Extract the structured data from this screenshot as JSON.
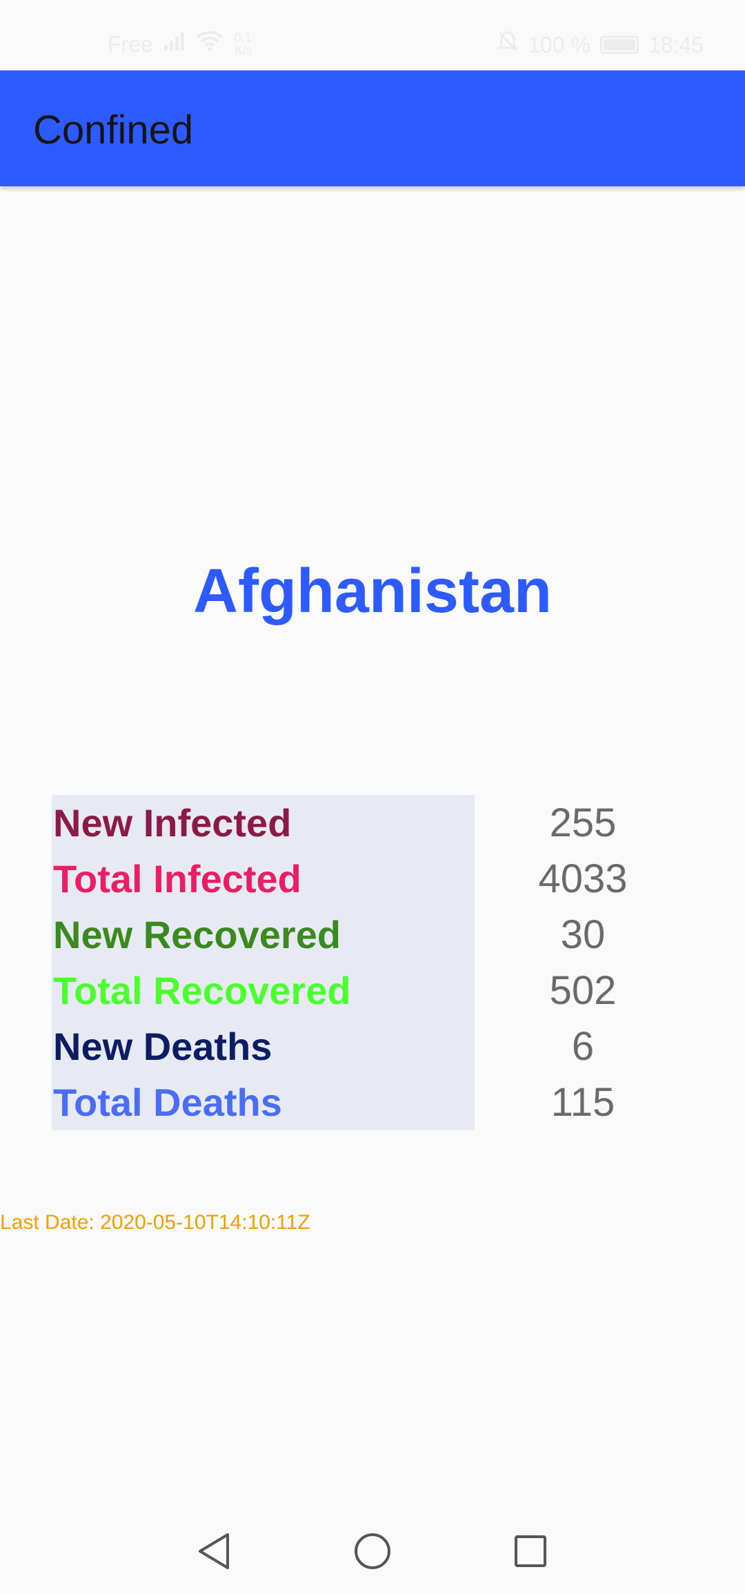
{
  "status_bar": {
    "carrier": "Free",
    "network_speed": "0.1 K/s",
    "battery_percent": "100 %",
    "time": "18:45",
    "icons": [
      "signal-icon",
      "wifi-icon",
      "mute-icon",
      "battery-icon"
    ]
  },
  "app_bar": {
    "title": "Confined",
    "color": "#2e5bff"
  },
  "country": "Afghanistan",
  "stats": [
    {
      "label": "New Infected",
      "value": "255",
      "color": "#8c1a46"
    },
    {
      "label": "Total Infected",
      "value": "4033",
      "color": "#e91e63"
    },
    {
      "label": "New Recovered",
      "value": "30",
      "color": "#3a8a1f"
    },
    {
      "label": "Total Recovered",
      "value": "502",
      "color": "#4cff2f"
    },
    {
      "label": "New Deaths",
      "value": "6",
      "color": "#0d1d63"
    },
    {
      "label": "Total Deaths",
      "value": "115",
      "color": "#4a6cf7"
    }
  ],
  "last_date": "Last Date: 2020-05-10T14:10:11Z",
  "nav": {
    "icons": [
      "back-icon",
      "home-icon",
      "recents-icon"
    ]
  }
}
